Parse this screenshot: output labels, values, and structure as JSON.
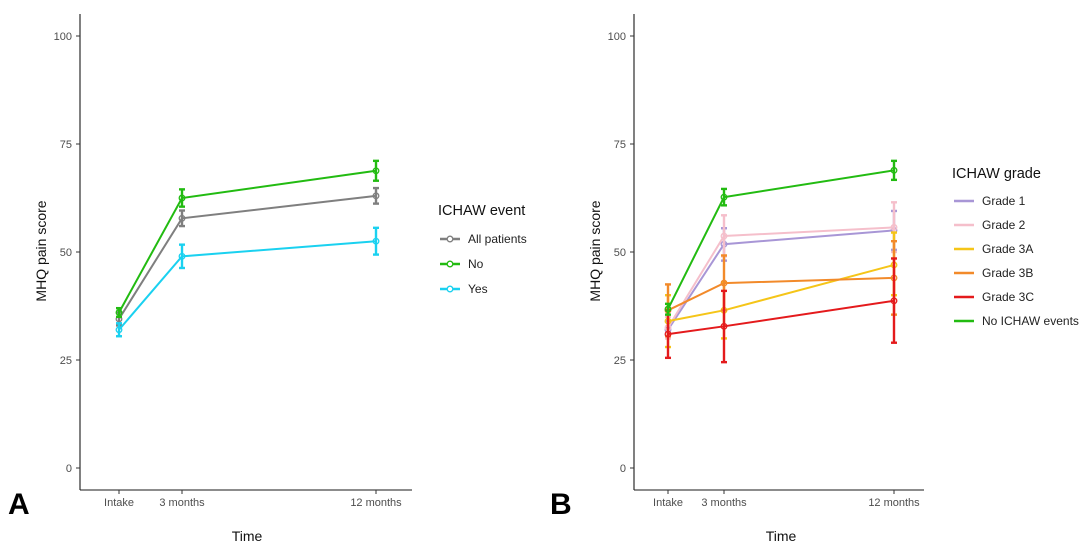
{
  "chart_data": [
    {
      "panel": "A",
      "type": "line",
      "xlabel": "Time",
      "ylabel": "MHQ pain score",
      "x": [
        0,
        3,
        12
      ],
      "xticks": [
        "Intake",
        "3 months",
        "12 months"
      ],
      "ylim": [
        0,
        100
      ],
      "yticks": [
        "0",
        "25",
        "50",
        "75",
        "100"
      ],
      "legend_title": "ICHAW event",
      "legend_position": "right",
      "grid": false,
      "error_bars": true,
      "series": [
        {
          "name": "All patients",
          "color": "#7f7f7f",
          "values": [
            34.5,
            57.8,
            63.0
          ],
          "lower": [
            33.0,
            56.0,
            61.2
          ],
          "upper": [
            36.0,
            59.6,
            64.8
          ]
        },
        {
          "name": "No",
          "color": "#22bb11",
          "values": [
            36.0,
            62.5,
            68.8
          ],
          "lower": [
            35.0,
            60.5,
            66.5
          ],
          "upper": [
            37.0,
            64.5,
            71.1
          ]
        },
        {
          "name": "Yes",
          "color": "#1ad1f0",
          "values": [
            32.0,
            49.0,
            52.5
          ],
          "lower": [
            30.5,
            46.3,
            49.4
          ],
          "upper": [
            33.5,
            51.7,
            55.6
          ]
        }
      ]
    },
    {
      "panel": "B",
      "type": "line",
      "xlabel": "Time",
      "ylabel": "MHQ pain score",
      "x": [
        0,
        3,
        12
      ],
      "xticks": [
        "Intake",
        "3 months",
        "12 months"
      ],
      "ylim": [
        0,
        100
      ],
      "yticks": [
        "0",
        "25",
        "50",
        "75",
        "100"
      ],
      "legend_title": "ICHAW grade",
      "legend_position": "right",
      "grid": false,
      "error_bars": true,
      "series": [
        {
          "name": "Grade 1",
          "color": "#a896d6",
          "values": [
            32.0,
            51.8,
            55.0
          ],
          "lower": [
            30.0,
            48.0,
            50.5
          ],
          "upper": [
            34.0,
            55.5,
            59.5
          ]
        },
        {
          "name": "Grade 2",
          "color": "#f5bfcb",
          "values": [
            32.5,
            53.7,
            55.7
          ],
          "lower": [
            30.0,
            49.0,
            50.0
          ],
          "upper": [
            35.0,
            58.5,
            61.5
          ]
        },
        {
          "name": "Grade 3A",
          "color": "#f5c518",
          "values": [
            34.0,
            36.5,
            47.0
          ],
          "lower": [
            28.0,
            30.0,
            40.0
          ],
          "upper": [
            40.0,
            43.0,
            54.5
          ]
        },
        {
          "name": "Grade 3B",
          "color": "#f28a2a",
          "values": [
            36.5,
            42.8,
            44.0
          ],
          "lower": [
            30.5,
            36.5,
            35.5
          ],
          "upper": [
            42.5,
            49.2,
            52.5
          ]
        },
        {
          "name": "Grade 3C",
          "color": "#e41a1c",
          "values": [
            31.0,
            32.8,
            38.7
          ],
          "lower": [
            25.5,
            24.5,
            29.0
          ],
          "upper": [
            36.5,
            41.0,
            48.5
          ]
        },
        {
          "name": "No ICHAW events",
          "color": "#22bb11",
          "values": [
            36.8,
            62.7,
            68.9
          ],
          "lower": [
            35.5,
            60.8,
            66.7
          ],
          "upper": [
            38.0,
            64.6,
            71.1
          ]
        }
      ]
    }
  ]
}
